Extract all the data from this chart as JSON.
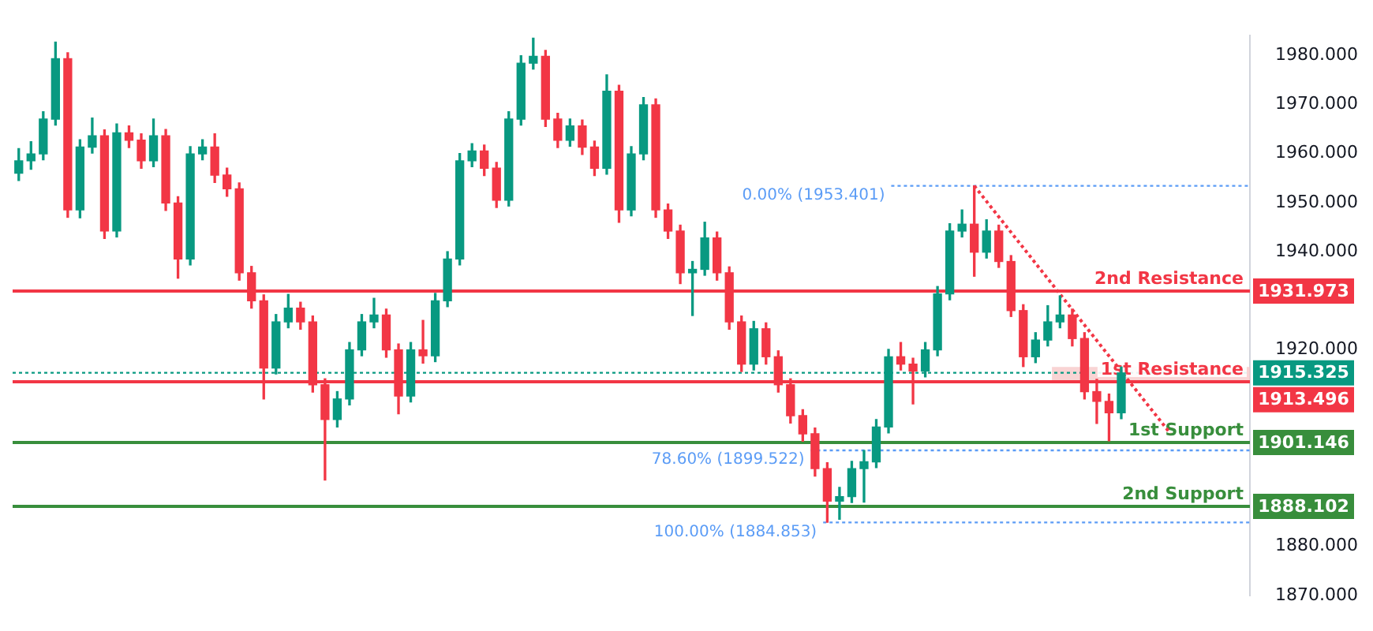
{
  "chart_data": {
    "type": "candlestick",
    "categories": [
      null,
      null,
      null,
      null,
      null,
      null,
      null,
      null,
      null,
      null,
      null,
      null,
      null,
      null,
      null,
      null,
      null,
      null,
      null,
      null,
      null,
      null,
      null,
      null,
      null,
      null,
      null,
      null,
      null,
      null,
      null,
      null,
      null,
      null,
      null,
      null,
      null,
      null,
      null,
      null,
      null,
      null,
      null,
      null,
      null,
      null,
      null,
      null,
      null,
      null,
      null,
      null,
      null,
      null,
      null,
      null,
      null,
      null,
      null,
      null,
      null,
      null,
      null,
      null,
      null,
      null,
      null,
      null,
      null,
      null,
      null,
      null,
      null,
      null,
      null,
      null,
      null,
      null,
      null,
      null,
      null,
      null,
      null,
      null,
      null,
      null,
      null,
      null,
      null,
      null,
      null,
      null,
      null,
      null,
      null,
      null,
      null,
      null,
      null,
      null,
      null
    ],
    "ohlc": [
      [
        1956.0,
        1961.0,
        1954.5,
        1958.5
      ],
      [
        1958.5,
        1962.4,
        1956.8,
        1959.9
      ],
      [
        1959.9,
        1968.5,
        1958.7,
        1967.0
      ],
      [
        1967.0,
        1982.7,
        1965.8,
        1979.3
      ],
      [
        1979.3,
        1980.5,
        1947.0,
        1948.5
      ],
      [
        1948.5,
        1962.8,
        1946.9,
        1961.3
      ],
      [
        1961.3,
        1967.2,
        1960.1,
        1963.6
      ],
      [
        1963.6,
        1964.8,
        1942.7,
        1944.2
      ],
      [
        1944.2,
        1966.0,
        1943.0,
        1964.2
      ],
      [
        1964.2,
        1965.6,
        1961.2,
        1962.7
      ],
      [
        1962.7,
        1964.0,
        1957.0,
        1958.5
      ],
      [
        1958.5,
        1967.0,
        1957.3,
        1963.6
      ],
      [
        1963.6,
        1964.9,
        1948.4,
        1949.9
      ],
      [
        1949.9,
        1951.2,
        1934.6,
        1938.5
      ],
      [
        1938.5,
        1961.4,
        1937.3,
        1959.9
      ],
      [
        1959.9,
        1962.8,
        1958.7,
        1961.3
      ],
      [
        1961.3,
        1964.0,
        1954.1,
        1955.6
      ],
      [
        1955.6,
        1957.0,
        1951.3,
        1952.8
      ],
      [
        1952.8,
        1954.0,
        1934.2,
        1935.7
      ],
      [
        1935.7,
        1937.0,
        1928.5,
        1930.0
      ],
      [
        1930.0,
        1931.2,
        1910.0,
        1916.3
      ],
      [
        1916.3,
        1927.2,
        1915.1,
        1925.7
      ],
      [
        1925.7,
        1931.3,
        1924.5,
        1928.5
      ],
      [
        1928.5,
        1929.7,
        1924.2,
        1925.7
      ],
      [
        1925.7,
        1926.9,
        1911.4,
        1912.9
      ],
      [
        1912.9,
        1914.1,
        1893.5,
        1905.8
      ],
      [
        1905.8,
        1911.5,
        1904.3,
        1910.0
      ],
      [
        1910.0,
        1921.5,
        1908.8,
        1920.0
      ],
      [
        1920.0,
        1927.2,
        1918.8,
        1925.7
      ],
      [
        1925.7,
        1930.5,
        1924.5,
        1927.1
      ],
      [
        1927.1,
        1928.3,
        1918.5,
        1920.0
      ],
      [
        1920.0,
        1921.2,
        1907.0,
        1910.6
      ],
      [
        1910.6,
        1921.5,
        1909.4,
        1920.0
      ],
      [
        1920.0,
        1926.0,
        1917.3,
        1918.8
      ],
      [
        1918.8,
        1931.5,
        1917.6,
        1930.0
      ],
      [
        1930.0,
        1940.0,
        1928.8,
        1938.5
      ],
      [
        1938.5,
        1960.0,
        1937.3,
        1958.5
      ],
      [
        1958.5,
        1962.0,
        1957.3,
        1960.5
      ],
      [
        1960.5,
        1961.7,
        1955.5,
        1957.0
      ],
      [
        1957.0,
        1958.2,
        1949.0,
        1950.5
      ],
      [
        1950.5,
        1968.5,
        1949.3,
        1967.0
      ],
      [
        1967.0,
        1979.9,
        1965.8,
        1978.4
      ],
      [
        1978.4,
        1983.5,
        1977.2,
        1979.8
      ],
      [
        1979.8,
        1981.0,
        1965.5,
        1967.0
      ],
      [
        1967.0,
        1968.2,
        1961.2,
        1962.7
      ],
      [
        1962.7,
        1967.0,
        1961.5,
        1965.6
      ],
      [
        1965.6,
        1966.8,
        1959.8,
        1961.3
      ],
      [
        1961.3,
        1962.5,
        1955.5,
        1957.0
      ],
      [
        1957.0,
        1976.0,
        1955.8,
        1972.7
      ],
      [
        1972.7,
        1973.9,
        1946.0,
        1948.5
      ],
      [
        1948.5,
        1961.4,
        1947.3,
        1959.9
      ],
      [
        1959.9,
        1971.4,
        1958.7,
        1969.9
      ],
      [
        1969.9,
        1971.1,
        1947.0,
        1948.5
      ],
      [
        1948.5,
        1949.7,
        1942.7,
        1944.2
      ],
      [
        1944.2,
        1945.4,
        1933.5,
        1935.7
      ],
      [
        1935.7,
        1938.0,
        1927.0,
        1936.4
      ],
      [
        1936.4,
        1946.0,
        1935.2,
        1942.8
      ],
      [
        1942.8,
        1944.0,
        1934.2,
        1935.7
      ],
      [
        1935.7,
        1936.9,
        1924.2,
        1925.7
      ],
      [
        1925.7,
        1926.9,
        1915.6,
        1917.1
      ],
      [
        1917.1,
        1925.8,
        1915.9,
        1924.3
      ],
      [
        1924.3,
        1925.5,
        1917.1,
        1918.6
      ],
      [
        1918.6,
        1919.8,
        1911.4,
        1912.9
      ],
      [
        1912.9,
        1914.1,
        1905.1,
        1906.6
      ],
      [
        1906.6,
        1907.8,
        1901.4,
        1902.9
      ],
      [
        1902.9,
        1904.1,
        1894.3,
        1895.8
      ],
      [
        1895.8,
        1897.0,
        1884.9,
        1889.2
      ],
      [
        1889.2,
        1892.0,
        1885.5,
        1890.1
      ],
      [
        1890.1,
        1897.3,
        1888.9,
        1895.8
      ],
      [
        1895.8,
        1899.5,
        1889.0,
        1897.2
      ],
      [
        1897.2,
        1905.8,
        1896.0,
        1904.3
      ],
      [
        1904.3,
        1920.1,
        1903.1,
        1918.6
      ],
      [
        1918.6,
        1921.5,
        1915.9,
        1917.1
      ],
      [
        1917.1,
        1918.3,
        1909.0,
        1915.7
      ],
      [
        1915.7,
        1921.5,
        1914.5,
        1920.0
      ],
      [
        1920.0,
        1932.9,
        1918.8,
        1931.4
      ],
      [
        1931.4,
        1945.7,
        1930.2,
        1944.2
      ],
      [
        1944.2,
        1948.5,
        1943.0,
        1945.6
      ],
      [
        1945.6,
        1953.4,
        1935.0,
        1939.9
      ],
      [
        1939.9,
        1946.5,
        1938.7,
        1944.2
      ],
      [
        1944.2,
        1945.4,
        1936.8,
        1938.0
      ],
      [
        1938.0,
        1939.2,
        1926.8,
        1928.0
      ],
      [
        1928.0,
        1929.2,
        1916.6,
        1918.6
      ],
      [
        1918.6,
        1923.5,
        1917.4,
        1922.0
      ],
      [
        1922.0,
        1929.0,
        1920.8,
        1925.7
      ],
      [
        1925.7,
        1931.0,
        1924.5,
        1927.1
      ],
      [
        1927.1,
        1928.3,
        1920.8,
        1922.3
      ],
      [
        1922.3,
        1923.5,
        1910.0,
        1911.5
      ],
      [
        1911.5,
        1914.0,
        1905.0,
        1909.5
      ],
      [
        1909.5,
        1911.0,
        1901.5,
        1907.2
      ],
      [
        1907.2,
        1916.5,
        1906.0,
        1915.3
      ],
      null,
      null,
      null,
      null,
      null,
      null,
      null,
      null,
      null,
      null
    ],
    "series": [
      {
        "type": "line",
        "color": "#f23645",
        "line_style": "dotted",
        "values": [
          null,
          null,
          null,
          null,
          null,
          null,
          null,
          null,
          null,
          null,
          null,
          null,
          null,
          null,
          null,
          null,
          null,
          null,
          null,
          null,
          null,
          null,
          null,
          null,
          null,
          null,
          null,
          null,
          null,
          null,
          null,
          null,
          null,
          null,
          null,
          null,
          null,
          null,
          null,
          null,
          null,
          null,
          null,
          null,
          null,
          null,
          null,
          null,
          null,
          null,
          null,
          null,
          null,
          null,
          null,
          null,
          null,
          null,
          null,
          null,
          null,
          null,
          null,
          null,
          null,
          null,
          null,
          null,
          null,
          null,
          null,
          null,
          null,
          null,
          null,
          null,
          null,
          null,
          1953.4,
          null,
          null,
          null,
          null,
          null,
          null,
          null,
          null,
          null,
          null,
          null,
          null,
          null,
          null,
          null,
          1903.0,
          null,
          null,
          null,
          null,
          null,
          null
        ]
      }
    ],
    "ylim": [
      1870,
      1984
    ],
    "yticks": [
      {
        "value": 1870,
        "label": "1870.000"
      },
      {
        "value": 1880,
        "label": "1880.000"
      },
      {
        "value": 1920,
        "label": "1920.000"
      },
      {
        "value": 1940,
        "label": "1940.000"
      },
      {
        "value": 1950,
        "label": "1950.000"
      },
      {
        "value": 1960,
        "label": "1960.000"
      },
      {
        "value": 1970,
        "label": "1970.000"
      },
      {
        "value": 1980,
        "label": "1980.000"
      }
    ],
    "tick_labels": "y",
    "grid": false,
    "legend": false,
    "annotations": [
      "1931.973",
      "1915.325",
      "1913.496",
      "1901.146",
      "1888.102"
    ],
    "bands": [
      {
        "axis": "y",
        "from": 1913.496,
        "to": 1916.5,
        "color": "#f7c9c9"
      }
    ],
    "ref_lines": [
      {
        "axis": "y",
        "value": 1931.973,
        "label": "2nd Resistance",
        "color": "#f23645",
        "line_style": "solid"
      },
      {
        "axis": "y",
        "value": 1915.325,
        "color": "#089981",
        "line_style": "dotted"
      },
      {
        "axis": "y",
        "value": 1913.496,
        "label": "1st Resistance",
        "color": "#f23645",
        "line_style": "solid"
      },
      {
        "axis": "y",
        "value": 1901.146,
        "label": "1st Support",
        "color": "#388e3c",
        "line_style": "solid"
      },
      {
        "axis": "y",
        "value": 1888.102,
        "label": "2nd Support",
        "color": "#388e3c",
        "line_style": "solid"
      },
      {
        "axis": "y",
        "value": 1953.401,
        "label": "0.00% (1953.401)",
        "color": "#5b9cf6",
        "line_style": "dotted"
      },
      {
        "axis": "y",
        "value": 1899.522,
        "label": "78.60% (1899.522)",
        "color": "#5b9cf6",
        "line_style": "dotted"
      },
      {
        "axis": "y",
        "value": 1884.853,
        "label": "100.00% (1884.853)",
        "color": "#5b9cf6",
        "line_style": "dotted"
      }
    ]
  }
}
